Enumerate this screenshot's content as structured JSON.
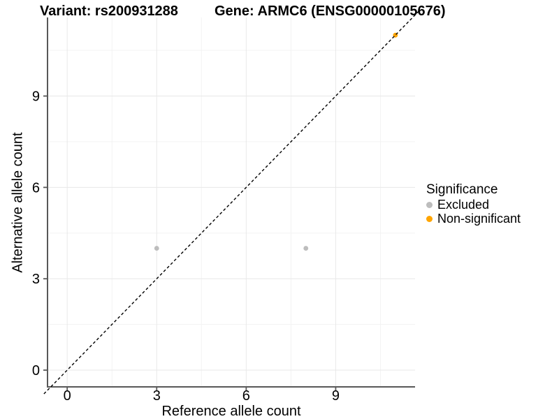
{
  "chart_data": {
    "type": "scatter",
    "title_left": "Variant: rs200931288",
    "title_right": "Gene: ARMC6 (ENSG00000105676)",
    "xlabel": "Reference allele count",
    "ylabel": "Alternative allele count",
    "xlim": [
      -0.66,
      11.66
    ],
    "ylim": [
      -0.55,
      11.58
    ],
    "x_ticks": [
      0,
      3,
      6,
      9
    ],
    "y_ticks": [
      0,
      3,
      6,
      9
    ],
    "x_minor_ticks": [
      1.5,
      4.5,
      7.5,
      10.5
    ],
    "y_minor_ticks": [
      1.5,
      4.5,
      7.5,
      10.5
    ],
    "grid": "major and minor gridlines, white panel background",
    "identity_line": {
      "style": "dashed",
      "slope": 1,
      "intercept": 0,
      "color": "#000000"
    },
    "series": [
      {
        "name": "Excluded",
        "color": "#BDBDBD",
        "points": [
          [
            3,
            4
          ],
          [
            8,
            4
          ]
        ]
      },
      {
        "name": "Non-significant",
        "color": "#FFA500",
        "points": [
          [
            11,
            11
          ]
        ]
      }
    ],
    "legend": {
      "title": "Significance",
      "position": "right",
      "items": [
        {
          "label": "Excluded",
          "color": "#BDBDBD"
        },
        {
          "label": "Non-significant",
          "color": "#FFA500"
        }
      ]
    },
    "colors": {
      "axis_line": "#585858",
      "grid_major": "#E8E8E8",
      "grid_minor": "#F3F3F3",
      "text": "#000000",
      "background": "#FFFFFF"
    }
  }
}
